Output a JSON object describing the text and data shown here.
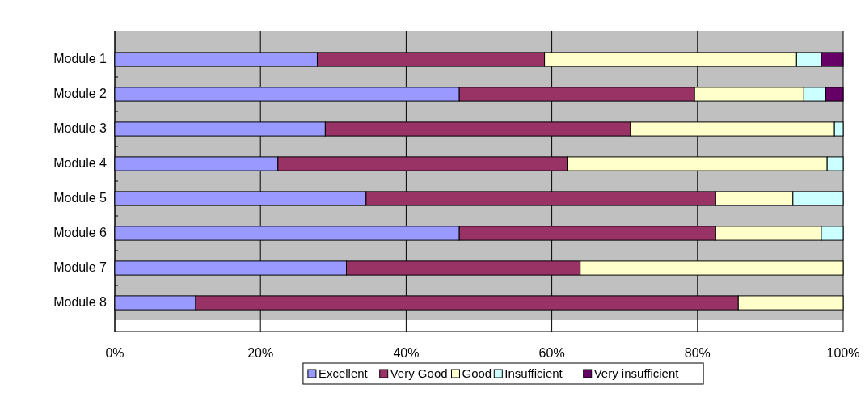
{
  "chart_data": {
    "type": "bar",
    "orientation": "horizontal",
    "stacked": true,
    "categories": [
      "Module 1",
      "Module 2",
      "Module 3",
      "Module 4",
      "Module 5",
      "Module 6",
      "Module 7",
      "Module 8"
    ],
    "series": [
      {
        "name": "Excellent",
        "color": "#9999ff",
        "values": [
          27.8,
          47.3,
          28.9,
          22.4,
          34.5,
          47.3,
          31.8,
          11.1
        ]
      },
      {
        "name": "Very Good",
        "color": "#993366",
        "values": [
          31.2,
          32.3,
          41.9,
          39.7,
          48.0,
          35.2,
          32.1,
          74.5
        ]
      },
      {
        "name": "Good",
        "color": "#ffffcc",
        "values": [
          34.6,
          15.0,
          28.0,
          35.7,
          10.6,
          14.5,
          36.1,
          14.4
        ]
      },
      {
        "name": "Insufficient",
        "color": "#ccffff",
        "values": [
          3.4,
          3.0,
          1.2,
          2.2,
          6.9,
          3.0,
          0,
          0
        ]
      },
      {
        "name": "Very insufficient",
        "color": "#660066",
        "values": [
          3.0,
          2.4,
          0,
          0,
          0,
          0,
          0,
          0
        ]
      }
    ],
    "xlim": [
      0,
      100
    ],
    "xticks": [
      {
        "value": 0,
        "label": "0%"
      },
      {
        "value": 20,
        "label": "20%"
      },
      {
        "value": 40,
        "label": "40%"
      },
      {
        "value": 60,
        "label": "60%"
      },
      {
        "value": 80,
        "label": "80%"
      },
      {
        "value": 100,
        "label": "100%"
      }
    ],
    "grid": "x",
    "legend": "bottom"
  }
}
